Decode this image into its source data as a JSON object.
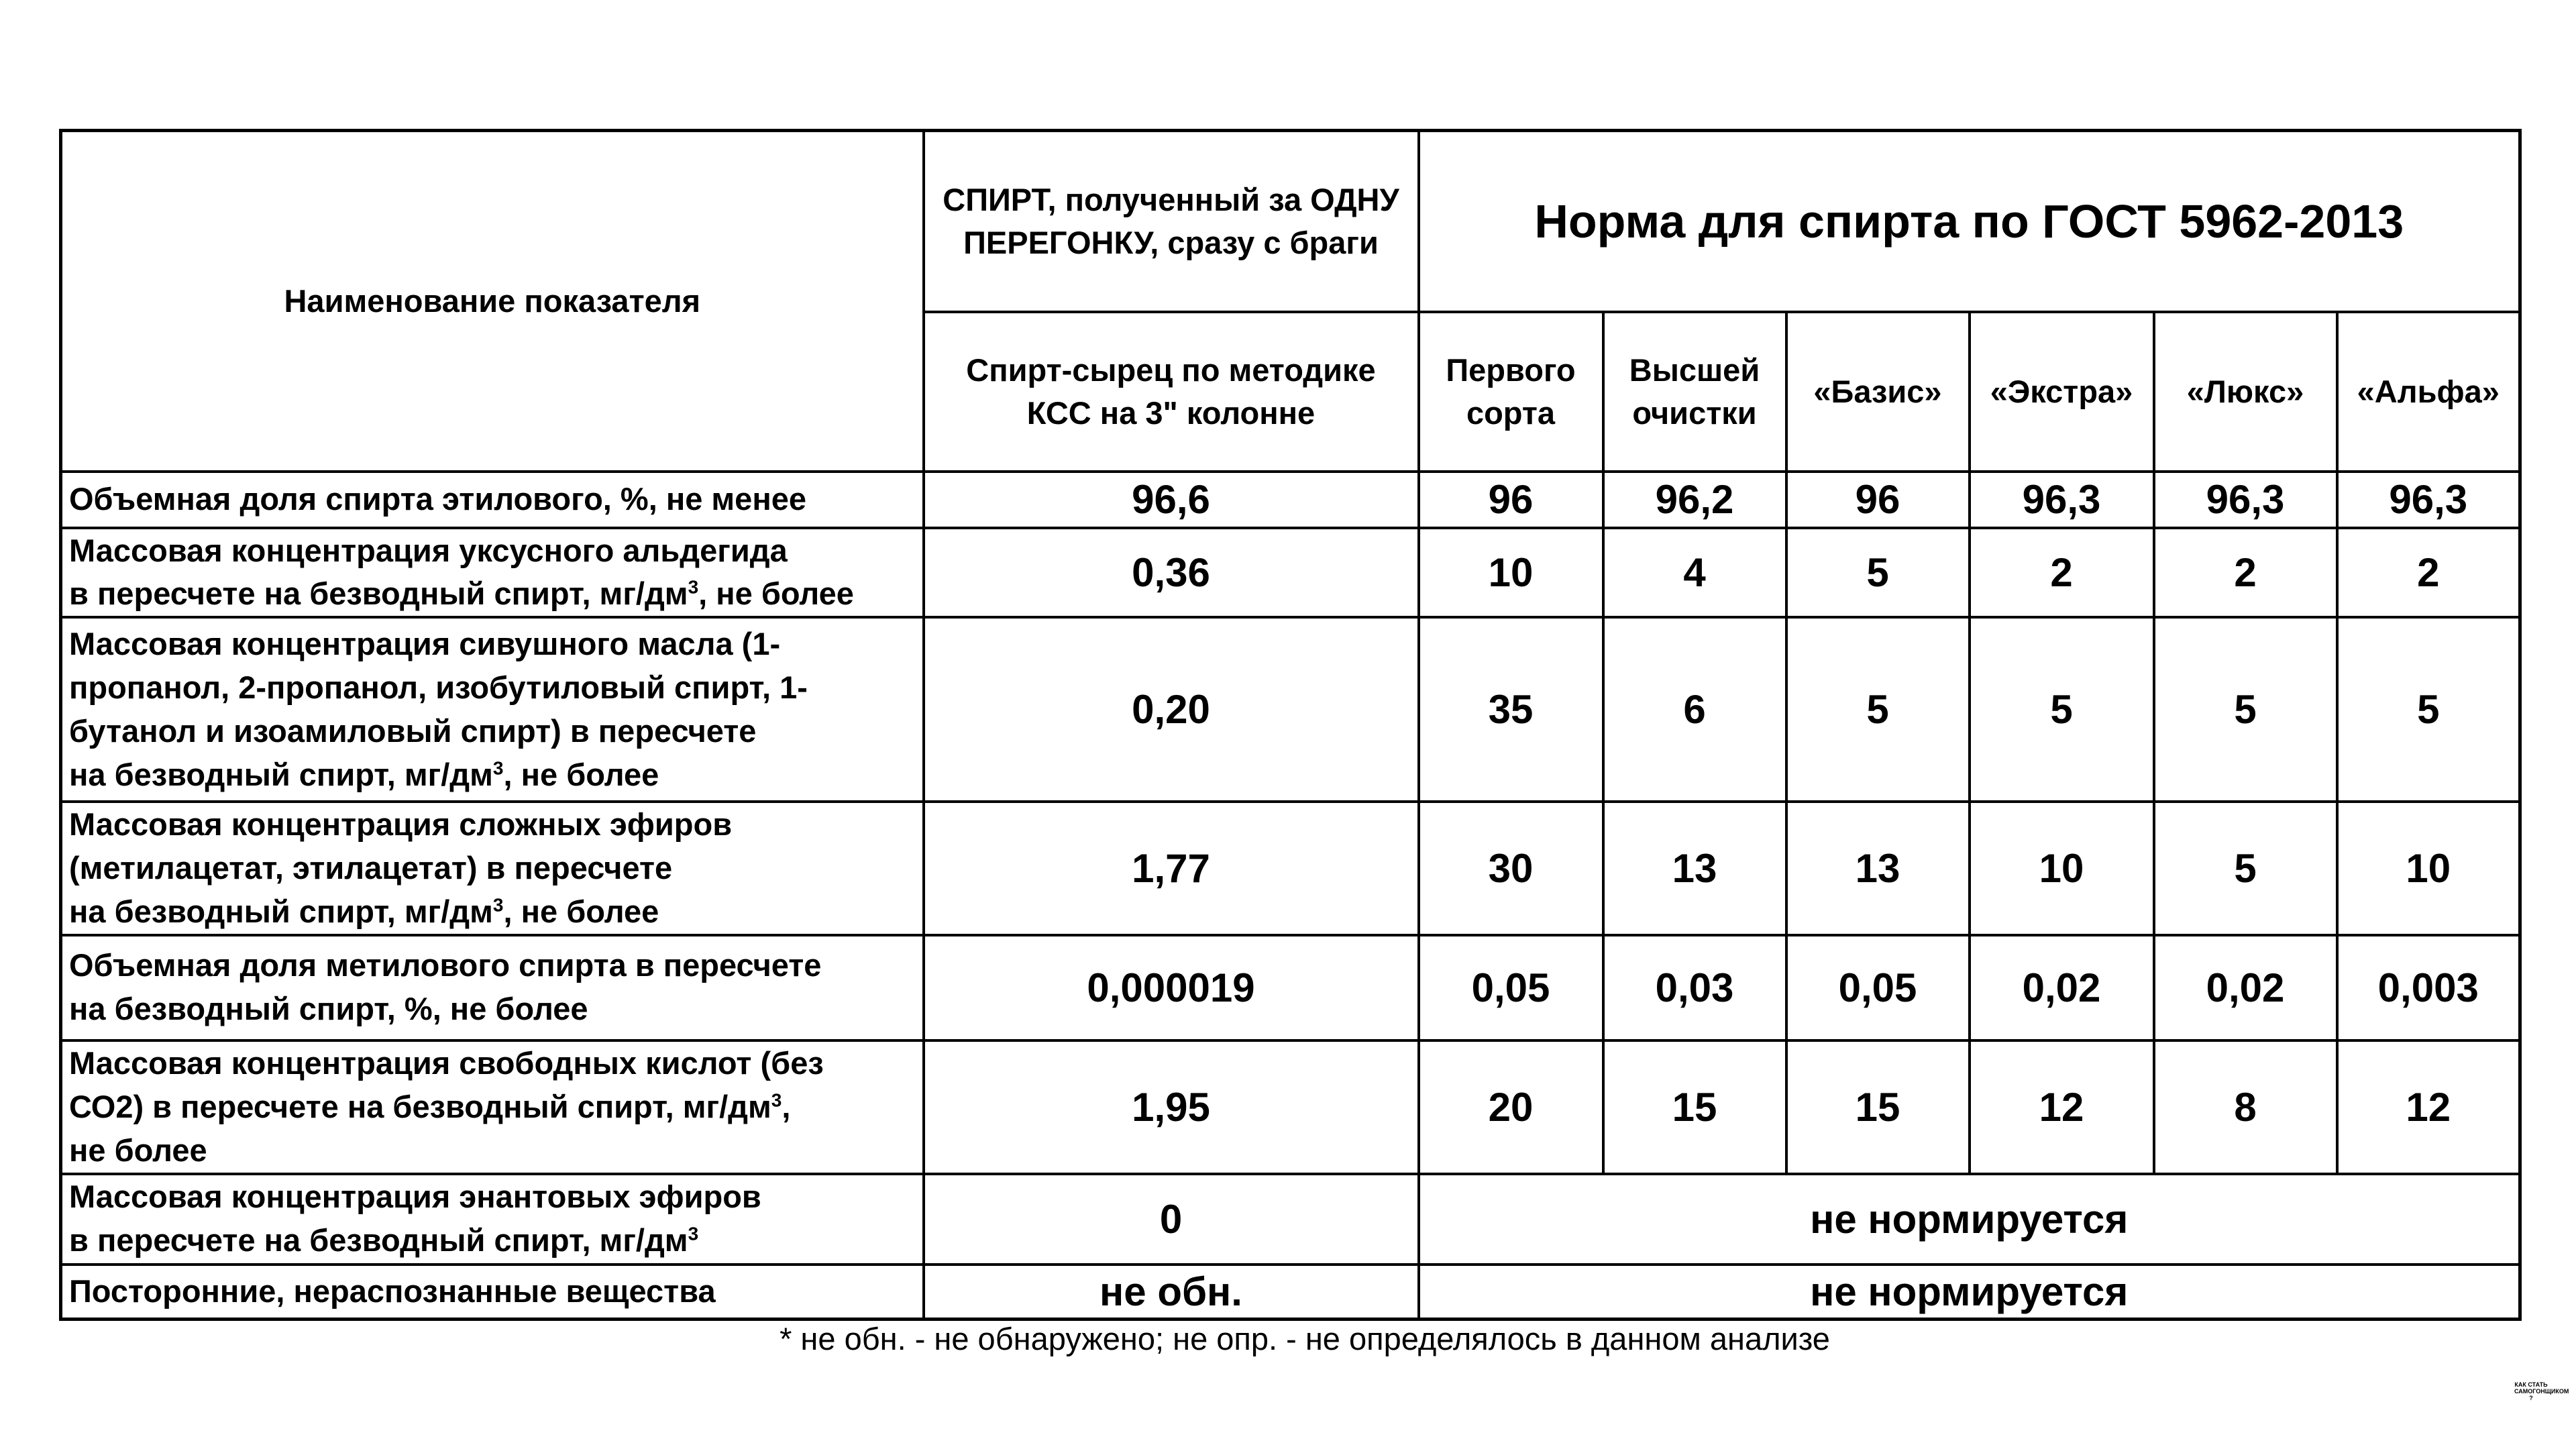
{
  "header": {
    "name_column": "Наименование показателя",
    "distill_title": "СПИРТ, полученный за ОДНУ ПЕРЕГОНКУ, сразу с браги",
    "gost_title": "Норма для спирта по ГОСТ 5962-2013",
    "subheaders": [
      "Спирт-сырец по методике КСС на 3\" колонне",
      "Первого сорта",
      "Высшей очистки",
      "«Базис»",
      "«Экстра»",
      "«Люкс»",
      "«Альфа»"
    ]
  },
  "rows": [
    {
      "label": [
        [
          "Объемная доля спирта этилового, %, не менее"
        ]
      ],
      "values": [
        "96,6",
        "96",
        "96,2",
        "96",
        "96,3",
        "96,3",
        "96,3"
      ]
    },
    {
      "label": [
        [
          "Массовая концентрация уксусного альдегида"
        ],
        [
          "в пересчете на безводный спирт, мг/дм",
          {
            "sup": "3"
          },
          ", не более"
        ]
      ],
      "values": [
        "0,36",
        "10",
        "4",
        "5",
        "2",
        "2",
        "2"
      ]
    },
    {
      "label": [
        [
          "Массовая концентрация сивушного масла (1-"
        ],
        [
          "пропанол, 2-пропанол, изобутиловый спирт, 1-"
        ],
        [
          "бутанол и изоамиловый спирт) в пересчете"
        ],
        [
          "на безводный спирт, мг/дм",
          {
            "sup": "3"
          },
          ", не более"
        ]
      ],
      "values": [
        "0,20",
        "35",
        "6",
        "5",
        "5",
        "5",
        "5"
      ]
    },
    {
      "label": [
        [
          "Массовая концентрация сложных эфиров"
        ],
        [
          "(метилацетат, этилацетат) в пересчете"
        ],
        [
          "на безводный спирт, мг/дм",
          {
            "sup": "3"
          },
          ", не более"
        ]
      ],
      "values": [
        "1,77",
        "30",
        "13",
        "13",
        "10",
        "5",
        "10"
      ]
    },
    {
      "label": [
        [
          "Объемная доля метилового спирта в пересчете"
        ],
        [
          "на безводный спирт, %, не более"
        ]
      ],
      "values": [
        "0,000019",
        "0,05",
        "0,03",
        "0,05",
        "0,02",
        "0,02",
        "0,003"
      ]
    },
    {
      "label": [
        [
          "Массовая концентрация свободных кислот (без"
        ],
        [
          "СО2) в пересчете на безводный спирт, мг/дм",
          {
            "sup": "3"
          },
          ","
        ],
        [
          "не более"
        ]
      ],
      "values": [
        "1,95",
        "20",
        "15",
        "15",
        "12",
        "8",
        "12"
      ]
    },
    {
      "label": [
        [
          "Массовая концентрация энантовых эфиров"
        ],
        [
          "в пересчете на безводный спирт, мг/дм",
          {
            "sup": "3"
          }
        ]
      ],
      "values": [
        "0"
      ],
      "span": "не нормируется"
    },
    {
      "label": [
        [
          "Посторонние, нераспознанные вещества"
        ]
      ],
      "values": [
        "не обн."
      ],
      "span": "не нормируется"
    }
  ],
  "footnote": "* не обн. - не обнаружено; не опр. - не определялось в данном анализе",
  "watermark": "КАК СТАТЬ САМОГОНЩИКОМ ?"
}
